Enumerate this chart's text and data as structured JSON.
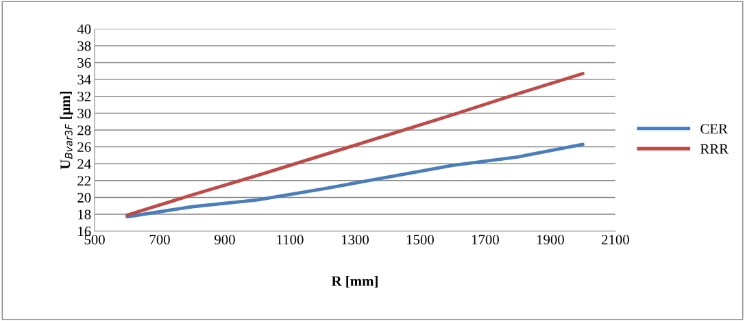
{
  "chart_data": {
    "type": "line",
    "xlabel": "R [mm]",
    "ylabel": "U$_{Bvar3F}$ [μm]",
    "xlim": [
      500,
      2100
    ],
    "xticks": [
      500,
      700,
      900,
      1100,
      1300,
      1500,
      1700,
      1900,
      2100
    ],
    "ylim": [
      16,
      40
    ],
    "yticks": [
      16,
      18,
      20,
      22,
      24,
      26,
      28,
      30,
      32,
      34,
      36,
      38,
      40
    ],
    "grid": "y",
    "legend": "right",
    "marker": "none",
    "line_style": "solid",
    "series": [
      {
        "name": "CER",
        "color": "#4a7ebb",
        "x": [
          600,
          800,
          1000,
          1200,
          1400,
          1600,
          1800,
          2000
        ],
        "values": [
          17.7,
          18.9,
          19.7,
          21.0,
          22.4,
          23.8,
          24.8,
          26.3
        ]
      },
      {
        "name": "RRR",
        "color": "#be4b48",
        "x": [
          600,
          800,
          1000,
          1200,
          1400,
          1600,
          1800,
          2000
        ],
        "values": [
          17.9,
          20.3,
          22.6,
          25.0,
          27.4,
          29.8,
          32.3,
          34.7
        ]
      }
    ]
  }
}
